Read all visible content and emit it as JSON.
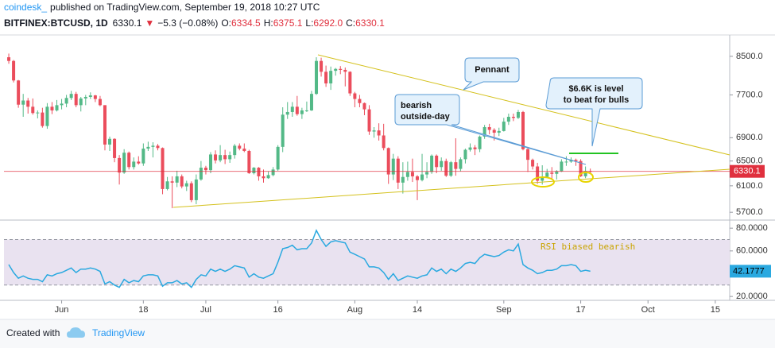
{
  "header": {
    "author": "coindesk_",
    "published": "published on TradingView.com, September 19, 2018 10:27 UTC",
    "symbol": "BITFINEX:BTCUSD, 1D",
    "last": "6330.1",
    "arrow": "▼",
    "change": "−5.3 (−0.08%)",
    "ohlc": [
      [
        "O:",
        "6334.5"
      ],
      [
        "H:",
        "6375.1"
      ],
      [
        "L:",
        "6292.0"
      ],
      [
        "C:",
        "6330.1"
      ]
    ]
  },
  "footer": {
    "created": "Created with",
    "brand": "TradingView"
  },
  "chart_data": {
    "type": "candlestick",
    "log_scale": true,
    "grid": false,
    "up_color": "#53b987",
    "down_color": "#eb4d5c",
    "last_color": "#e0303e",
    "annotations": [
      "Pennant",
      [
        "bearish",
        "outside-day"
      ],
      [
        "$6.6K is level",
        "to beat for bulls"
      ],
      "RSI biased bearish"
    ],
    "xlim": [
      "2018-05-20",
      "2018-10-18"
    ],
    "xticks": [
      {
        "value": "2018-06-01",
        "label": "Jun"
      },
      {
        "value": "2018-06-18",
        "label": "18"
      },
      {
        "value": "2018-07-01",
        "label": "Jul"
      },
      {
        "value": "2018-07-16",
        "label": "16"
      },
      {
        "value": "2018-08-01",
        "label": "Aug"
      },
      {
        "value": "2018-08-14",
        "label": "14"
      },
      {
        "value": "2018-09-01",
        "label": "Sep"
      },
      {
        "value": "2018-09-17",
        "label": "17"
      },
      {
        "value": "2018-10-01",
        "label": "Oct"
      },
      {
        "value": "2018-10-15",
        "label": "15"
      }
    ],
    "ylim": [
      5610,
      8960
    ],
    "yticks": [
      {
        "value": 8500,
        "label": "8500.0"
      },
      {
        "value": 7700,
        "label": "7700.0"
      },
      {
        "value": 6900,
        "label": "6900.0"
      },
      {
        "value": 6500,
        "label": "6500.0"
      },
      {
        "value": 6100,
        "label": "6100.0"
      },
      {
        "value": 5700,
        "label": "5700.0"
      }
    ],
    "x": [
      "2018-05-21",
      "2018-05-22",
      "2018-05-23",
      "2018-05-24",
      "2018-05-25",
      "2018-05-26",
      "2018-05-27",
      "2018-05-28",
      "2018-05-29",
      "2018-05-30",
      "2018-05-31",
      "2018-06-01",
      "2018-06-02",
      "2018-06-03",
      "2018-06-04",
      "2018-06-05",
      "2018-06-06",
      "2018-06-07",
      "2018-06-08",
      "2018-06-09",
      "2018-06-10",
      "2018-06-11",
      "2018-06-12",
      "2018-06-13",
      "2018-06-14",
      "2018-06-15",
      "2018-06-16",
      "2018-06-17",
      "2018-06-18",
      "2018-06-19",
      "2018-06-20",
      "2018-06-21",
      "2018-06-22",
      "2018-06-23",
      "2018-06-24",
      "2018-06-25",
      "2018-06-26",
      "2018-06-27",
      "2018-06-28",
      "2018-06-29",
      "2018-06-30",
      "2018-07-01",
      "2018-07-02",
      "2018-07-03",
      "2018-07-04",
      "2018-07-05",
      "2018-07-06",
      "2018-07-07",
      "2018-07-08",
      "2018-07-09",
      "2018-07-10",
      "2018-07-11",
      "2018-07-12",
      "2018-07-13",
      "2018-07-14",
      "2018-07-15",
      "2018-07-16",
      "2018-07-17",
      "2018-07-18",
      "2018-07-19",
      "2018-07-20",
      "2018-07-21",
      "2018-07-22",
      "2018-07-23",
      "2018-07-24",
      "2018-07-25",
      "2018-07-26",
      "2018-07-27",
      "2018-07-28",
      "2018-07-29",
      "2018-07-30",
      "2018-07-31",
      "2018-08-01",
      "2018-08-02",
      "2018-08-03",
      "2018-08-04",
      "2018-08-05",
      "2018-08-06",
      "2018-08-07",
      "2018-08-08",
      "2018-08-09",
      "2018-08-10",
      "2018-08-11",
      "2018-08-12",
      "2018-08-13",
      "2018-08-14",
      "2018-08-15",
      "2018-08-16",
      "2018-08-17",
      "2018-08-18",
      "2018-08-19",
      "2018-08-20",
      "2018-08-21",
      "2018-08-22",
      "2018-08-23",
      "2018-08-24",
      "2018-08-25",
      "2018-08-26",
      "2018-08-27",
      "2018-08-28",
      "2018-08-29",
      "2018-08-30",
      "2018-08-31",
      "2018-09-01",
      "2018-09-02",
      "2018-09-03",
      "2018-09-04",
      "2018-09-05",
      "2018-09-06",
      "2018-09-07",
      "2018-09-08",
      "2018-09-09",
      "2018-09-10",
      "2018-09-11",
      "2018-09-12",
      "2018-09-13",
      "2018-09-14",
      "2018-09-15",
      "2018-09-16",
      "2018-09-17",
      "2018-09-18",
      "2018-09-19"
    ],
    "open": [
      8480,
      8400,
      7990,
      7510,
      7590,
      7470,
      7350,
      7360,
      7110,
      7470,
      7400,
      7500,
      7530,
      7640,
      7720,
      7500,
      7630,
      7660,
      7690,
      7620,
      7500,
      6780,
      6880,
      6550,
      6310,
      6640,
      6400,
      6490,
      6460,
      6710,
      6740,
      6760,
      6720,
      6050,
      6170,
      6150,
      6250,
      6090,
      6140,
      5880,
      6200,
      6390,
      6350,
      6610,
      6510,
      6600,
      6530,
      6600,
      6760,
      6710,
      6670,
      6300,
      6390,
      6250,
      6220,
      6270,
      6360,
      6740,
      7320,
      7370,
      7470,
      7330,
      7400,
      7400,
      7720,
      8400,
      8170,
      7930,
      8190,
      8230,
      8210,
      8170,
      7730,
      7620,
      7540,
      7420,
      7010,
      7030,
      6940,
      6720,
      6280,
      6540,
      6150,
      6240,
      6320,
      6250,
      6190,
      6280,
      6320,
      6590,
      6400,
      6500,
      6260,
      6480,
      6370,
      6530,
      6690,
      6730,
      6700,
      6920,
      7090,
      7040,
      6990,
      7020,
      7190,
      7280,
      7260,
      7370,
      6700,
      6520,
      6410,
      6180,
      6240,
      6310,
      6290,
      6330,
      6490,
      6490,
      6520,
      6500,
      6250,
      6334.5
    ],
    "high": [
      8560,
      8420,
      8000,
      7720,
      7640,
      7630,
      7400,
      7450,
      7540,
      7560,
      7600,
      7620,
      7700,
      7780,
      7760,
      7660,
      7700,
      7750,
      7700,
      7680,
      7500,
      6920,
      6890,
      6600,
      6700,
      6660,
      6560,
      6580,
      6800,
      6830,
      6820,
      6790,
      6730,
      6240,
      6250,
      6340,
      6280,
      6180,
      6170,
      6280,
      6500,
      6420,
      6650,
      6680,
      6770,
      6690,
      6660,
      6790,
      6800,
      6800,
      6690,
      6400,
      6400,
      6360,
      6330,
      6400,
      6770,
      7460,
      7560,
      7560,
      7680,
      7450,
      7570,
      7780,
      8480,
      8470,
      8300,
      8280,
      8250,
      8290,
      8260,
      8180,
      7760,
      7700,
      7550,
      7500,
      7090,
      7160,
      7150,
      6730,
      6620,
      6580,
      6480,
      6490,
      6540,
      6270,
      6620,
      6480,
      6610,
      6610,
      6560,
      6540,
      6500,
      6890,
      6560,
      6710,
      6800,
      6770,
      6940,
      7130,
      7150,
      7070,
      7080,
      7260,
      7340,
      7340,
      7410,
      7390,
      6720,
      6540,
      6470,
      6430,
      6370,
      6400,
      6350,
      6530,
      6580,
      6560,
      6540,
      6530,
      6410,
      6375.1
    ],
    "low": [
      8340,
      7950,
      7450,
      7280,
      7340,
      7320,
      7250,
      7080,
      7060,
      7330,
      7380,
      7420,
      7460,
      7600,
      7460,
      7380,
      7500,
      7620,
      7560,
      7480,
      6680,
      6670,
      6480,
      6120,
      6290,
      6360,
      6360,
      6440,
      6420,
      6670,
      6560,
      6680,
      5970,
      6030,
      5760,
      6080,
      6060,
      6020,
      5850,
      5820,
      6180,
      6280,
      6300,
      6460,
      6480,
      6450,
      6470,
      6540,
      6680,
      6650,
      6290,
      6280,
      6180,
      6150,
      6210,
      6250,
      6340,
      6650,
      7240,
      7280,
      7300,
      7240,
      7370,
      7390,
      7700,
      8070,
      7860,
      7800,
      8090,
      8120,
      7870,
      7680,
      7460,
      7460,
      7310,
      6950,
      6900,
      6850,
      6680,
      6130,
      6190,
      6050,
      5980,
      6180,
      6160,
      5880,
      6170,
      6220,
      6290,
      6300,
      6340,
      6240,
      6240,
      6260,
      6330,
      6460,
      6660,
      6600,
      6650,
      6880,
      6960,
      6850,
      6930,
      7010,
      7130,
      7200,
      7240,
      6680,
      6320,
      6360,
      6130,
      6120,
      6230,
      6200,
      6200,
      6320,
      6420,
      6470,
      6420,
      6240,
      6220,
      6292
    ],
    "close": [
      8400,
      7990,
      7510,
      7590,
      7470,
      7350,
      7360,
      7110,
      7470,
      7400,
      7500,
      7530,
      7640,
      7720,
      7500,
      7630,
      7660,
      7690,
      7620,
      7500,
      6780,
      6880,
      6550,
      6310,
      6640,
      6400,
      6490,
      6460,
      6710,
      6740,
      6760,
      6720,
      6050,
      6170,
      6150,
      6250,
      6090,
      6140,
      5880,
      6200,
      6390,
      6350,
      6610,
      6510,
      6600,
      6530,
      6600,
      6760,
      6710,
      6670,
      6300,
      6390,
      6250,
      6220,
      6270,
      6360,
      6740,
      7320,
      7370,
      7470,
      7330,
      7400,
      7400,
      7720,
      8400,
      8170,
      7930,
      8190,
      8230,
      8210,
      8170,
      7730,
      7620,
      7540,
      7420,
      7010,
      7030,
      6940,
      6720,
      6280,
      6540,
      6150,
      6240,
      6320,
      6250,
      6190,
      6280,
      6320,
      6590,
      6400,
      6500,
      6260,
      6480,
      6370,
      6530,
      6690,
      6730,
      6700,
      6920,
      7090,
      7040,
      6990,
      7020,
      7190,
      7280,
      7260,
      7370,
      6700,
      6520,
      6410,
      6180,
      6240,
      6310,
      6290,
      6330,
      6490,
      6490,
      6520,
      6500,
      6250,
      6335.4,
      6330.1
    ],
    "rsi": {
      "color": "#2aa9e0",
      "band_color": "#e9e2f0",
      "ylim": [
        18,
        85
      ],
      "bands": [
        30,
        70
      ],
      "yticks": [
        {
          "value": 80,
          "label": "80.0000"
        },
        {
          "value": 60,
          "label": "60.0000"
        },
        {
          "value": 20,
          "label": "20.0000"
        }
      ],
      "values": [
        48,
        41,
        36,
        38,
        36,
        35,
        35,
        33,
        39,
        38,
        40,
        41,
        43,
        45,
        41,
        44,
        44,
        45,
        44,
        42,
        31,
        33,
        30,
        28,
        35,
        32,
        34,
        33,
        38,
        39,
        39,
        38,
        29,
        32,
        32,
        34,
        31,
        32,
        28,
        35,
        39,
        38,
        44,
        42,
        44,
        42,
        44,
        47,
        46,
        45,
        37,
        40,
        37,
        36,
        38,
        40,
        50,
        62,
        63,
        65,
        61,
        62,
        62,
        67,
        78,
        70,
        64,
        68,
        69,
        68,
        67,
        59,
        57,
        55,
        53,
        46,
        46,
        45,
        41,
        35,
        40,
        34,
        36,
        38,
        37,
        36,
        38,
        39,
        45,
        42,
        44,
        40,
        44,
        42,
        45,
        49,
        50,
        49,
        54,
        57,
        56,
        55,
        56,
        59,
        61,
        60,
        66,
        48,
        45,
        43,
        40,
        41,
        43,
        43,
        44,
        47,
        47,
        48,
        47,
        42,
        43,
        42.1777
      ]
    }
  }
}
